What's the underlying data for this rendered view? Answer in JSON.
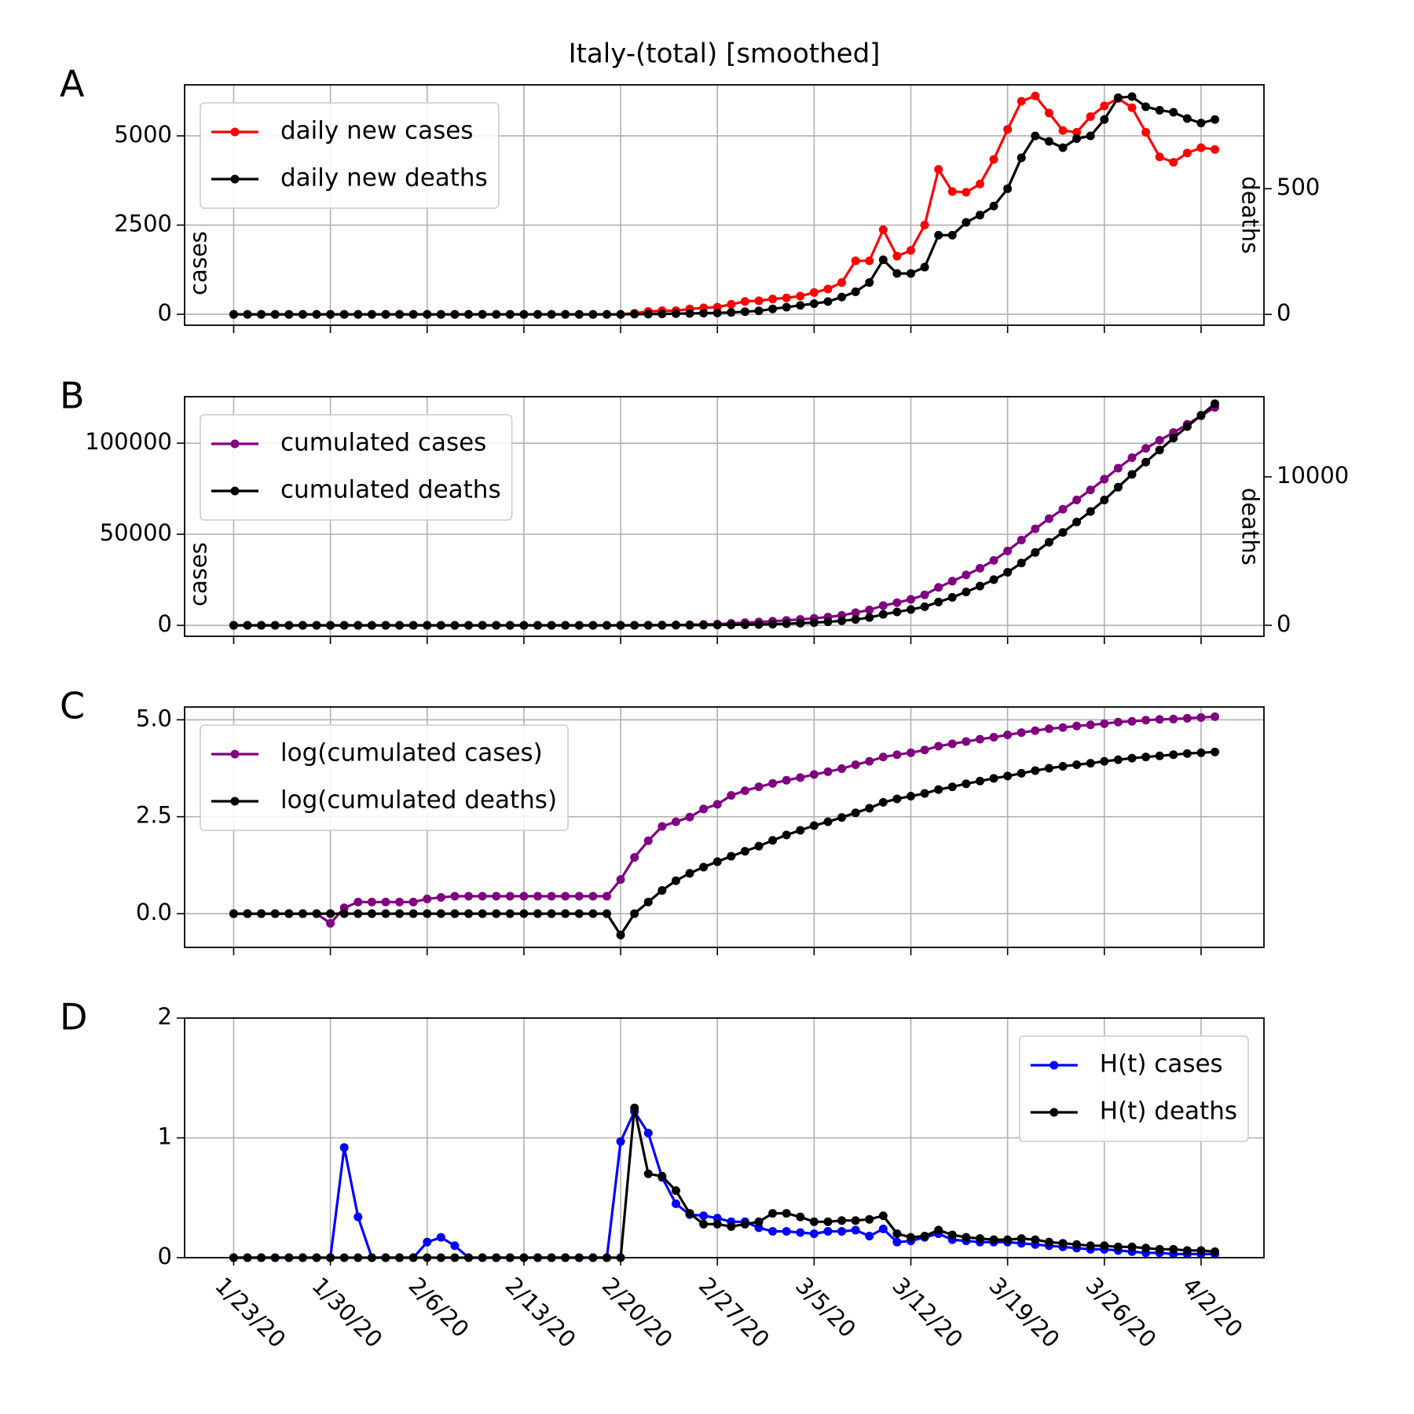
{
  "chart_data": [
    {
      "type": "line",
      "title": "Italy-(total) [smoothed]",
      "panel_label": "A",
      "ylabel": "cases",
      "y2label": "deaths",
      "legend": "upper left",
      "grid": true,
      "ylim": [
        -306,
        6430
      ],
      "yticks": [
        0,
        2500,
        5000
      ],
      "y2lim": [
        -43,
        913
      ],
      "y2ticks": [
        0,
        500
      ],
      "series": [
        {
          "name": "daily new cases",
          "color": "#ff0000",
          "values": [
            0,
            0,
            0,
            0,
            0,
            0,
            0,
            0,
            0,
            0,
            0,
            0,
            0,
            0,
            0,
            0,
            0,
            0,
            0,
            0,
            0,
            0,
            0,
            0,
            0,
            0,
            0,
            0,
            0,
            30,
            80,
            100,
            100,
            150,
            180,
            200,
            280,
            360,
            380,
            430,
            460,
            510,
            610,
            710,
            890,
            1500,
            1500,
            2370,
            1630,
            1790,
            2500,
            4060,
            3440,
            3420,
            3650,
            4340,
            5180,
            5970,
            6120,
            5640,
            5150,
            5100,
            5540,
            5840,
            6050,
            5790,
            5100,
            4410,
            4260,
            4520,
            4670,
            4620
          ]
        },
        {
          "name": "daily new deaths",
          "color": "#000000",
          "axis": "y2",
          "values": [
            0,
            0,
            0,
            0,
            0,
            0,
            0,
            0,
            0,
            0,
            0,
            0,
            0,
            0,
            0,
            0,
            0,
            0,
            0,
            0,
            0,
            0,
            0,
            0,
            0,
            0,
            0,
            0,
            0,
            1,
            1,
            2,
            3,
            4,
            5,
            6,
            8,
            11,
            14,
            22,
            29,
            36,
            43,
            51,
            69,
            90,
            127,
            217,
            163,
            163,
            188,
            315,
            315,
            366,
            395,
            431,
            500,
            623,
            710,
            688,
            663,
            699,
            710,
            775,
            862,
            866,
            826,
            812,
            804,
            779,
            761,
            775
          ]
        }
      ]
    },
    {
      "type": "line",
      "panel_label": "B",
      "ylabel": "cases",
      "y2label": "deaths",
      "legend": "upper left",
      "grid": true,
      "ylim": [
        -6000,
        125500
      ],
      "yticks": [
        0,
        50000,
        100000
      ],
      "y2lim": [
        -740,
        15400
      ],
      "y2ticks": [
        0,
        10000
      ],
      "series": [
        {
          "name": "cumulated cases",
          "color": "#800080",
          "values": [
            1,
            1,
            1,
            1,
            1,
            1,
            1,
            0.6,
            1.4,
            2,
            2,
            2,
            2,
            2,
            2.4,
            2.6,
            2.8,
            2.8,
            2.8,
            2.8,
            2.8,
            2.8,
            2.8,
            2.8,
            2.8,
            2.8,
            2.8,
            2.8,
            8,
            28,
            76,
            178,
            234,
            309,
            501,
            661,
            1123,
            1483,
            1863,
            2293,
            2753,
            3263,
            3873,
            4583,
            5473,
            6973,
            8473,
            10843,
            12473,
            14263,
            16763,
            20823,
            24263,
            27683,
            31333,
            35673,
            40853,
            46823,
            52943,
            58583,
            63733,
            68833,
            74373,
            80213,
            86263,
            92053,
            97153,
            101563,
            105823,
            110343,
            115013,
            119633
          ]
        },
        {
          "name": "cumulated deaths",
          "color": "#000000",
          "axis": "y2",
          "values": [
            1,
            1,
            1,
            1,
            1,
            1,
            1,
            1,
            1,
            1,
            1,
            1,
            1,
            1,
            1,
            1,
            1,
            1,
            1,
            1,
            1,
            1,
            1,
            1,
            1,
            1,
            1,
            1,
            0.28,
            1,
            2,
            4,
            7,
            11,
            16,
            22,
            30,
            41,
            55,
            77,
            106,
            142,
            185,
            236,
            305,
            395,
            522,
            739,
            902,
            1065,
            1253,
            1568,
            1883,
            2249,
            2644,
            3075,
            3575,
            4198,
            4908,
            5596,
            6259,
            6958,
            7668,
            8443,
            9305,
            10171,
            10997,
            11809,
            12613,
            13392,
            14153,
            14928
          ]
        }
      ]
    },
    {
      "type": "line",
      "panel_label": "C",
      "legend": "upper left",
      "grid": true,
      "ylim": [
        -0.87,
        5.33
      ],
      "yticks": [
        {
          "value": 0,
          "label": "0.0"
        },
        2.5,
        {
          "value": 5,
          "label": "5.0"
        }
      ],
      "series": [
        {
          "name": "log(cumulated cases)",
          "color": "#800080",
          "values": [
            0,
            0,
            0,
            0,
            0,
            0,
            0,
            -0.25,
            0.15,
            0.3,
            0.3,
            0.3,
            0.3,
            0.3,
            0.38,
            0.42,
            0.45,
            0.45,
            0.45,
            0.45,
            0.45,
            0.45,
            0.45,
            0.45,
            0.45,
            0.45,
            0.45,
            0.45,
            0.88,
            1.45,
            1.88,
            2.25,
            2.37,
            2.49,
            2.7,
            2.82,
            3.05,
            3.17,
            3.27,
            3.36,
            3.44,
            3.51,
            3.59,
            3.66,
            3.74,
            3.84,
            3.93,
            4.04,
            4.1,
            4.15,
            4.22,
            4.32,
            4.38,
            4.44,
            4.5,
            4.55,
            4.61,
            4.67,
            4.72,
            4.77,
            4.8,
            4.84,
            4.87,
            4.9,
            4.94,
            4.96,
            4.99,
            5.01,
            5.02,
            5.04,
            5.06,
            5.08
          ]
        },
        {
          "name": "log(cumulated deaths)",
          "color": "#000000",
          "values": [
            0,
            0,
            0,
            0,
            0,
            0,
            0,
            0,
            0,
            0,
            0,
            0,
            0,
            0,
            0,
            0,
            0,
            0,
            0,
            0,
            0,
            0,
            0,
            0,
            0,
            0,
            0,
            0,
            -0.55,
            0,
            0.3,
            0.6,
            0.85,
            1.04,
            1.2,
            1.34,
            1.48,
            1.61,
            1.74,
            1.89,
            2.03,
            2.15,
            2.27,
            2.37,
            2.48,
            2.6,
            2.72,
            2.87,
            2.96,
            3.03,
            3.1,
            3.2,
            3.27,
            3.35,
            3.42,
            3.49,
            3.55,
            3.62,
            3.69,
            3.75,
            3.8,
            3.84,
            3.88,
            3.93,
            3.97,
            4.01,
            4.04,
            4.07,
            4.1,
            4.13,
            4.15,
            4.17
          ]
        }
      ]
    },
    {
      "type": "line",
      "panel_label": "D",
      "legend": "upper right",
      "grid": true,
      "ylim": [
        0,
        2
      ],
      "yticks": [
        0,
        1,
        2
      ],
      "categories": [
        "1/23/20",
        null,
        null,
        null,
        null,
        null,
        null,
        "1/30/20",
        null,
        null,
        null,
        null,
        null,
        null,
        "2/6/20",
        null,
        null,
        null,
        null,
        null,
        null,
        "2/13/20",
        null,
        null,
        null,
        null,
        null,
        null,
        "2/20/20",
        null,
        null,
        null,
        null,
        null,
        null,
        "2/27/20",
        null,
        null,
        null,
        null,
        null,
        null,
        "3/5/20",
        null,
        null,
        null,
        null,
        null,
        null,
        "3/12/20",
        null,
        null,
        null,
        null,
        null,
        null,
        "3/19/20",
        null,
        null,
        null,
        null,
        null,
        null,
        "3/26/20",
        null,
        null,
        null,
        null,
        null,
        null,
        "4/2/20",
        null
      ],
      "series": [
        {
          "name": "H(t) cases",
          "color": "#0000ff",
          "values": [
            0,
            0,
            0,
            0,
            0,
            0,
            0,
            0,
            0.92,
            0.34,
            0,
            0,
            0,
            0,
            0.13,
            0.17,
            0.1,
            0,
            0,
            0,
            0,
            0,
            0,
            0,
            0,
            0,
            0,
            0,
            0.97,
            1.22,
            1.04,
            0.67,
            0.45,
            0.36,
            0.35,
            0.33,
            0.3,
            0.3,
            0.25,
            0.22,
            0.22,
            0.21,
            0.2,
            0.22,
            0.22,
            0.23,
            0.18,
            0.24,
            0.13,
            0.14,
            0.17,
            0.2,
            0.15,
            0.14,
            0.13,
            0.13,
            0.13,
            0.12,
            0.11,
            0.1,
            0.09,
            0.08,
            0.07,
            0.07,
            0.06,
            0.05,
            0.04,
            0.04,
            0.03,
            0.03,
            0.03,
            0.03
          ]
        },
        {
          "name": "H(t) deaths",
          "color": "#000000",
          "values": [
            0,
            0,
            0,
            0,
            0,
            0,
            0,
            0,
            0,
            0,
            0,
            0,
            0,
            0,
            0,
            0,
            0,
            0,
            0,
            0,
            0,
            0,
            0,
            0,
            0,
            0,
            0,
            0,
            0,
            1.25,
            0.7,
            0.68,
            0.56,
            0.37,
            0.28,
            0.28,
            0.26,
            0.28,
            0.3,
            0.37,
            0.37,
            0.34,
            0.3,
            0.3,
            0.31,
            0.31,
            0.32,
            0.35,
            0.2,
            0.17,
            0.18,
            0.23,
            0.19,
            0.17,
            0.16,
            0.15,
            0.15,
            0.16,
            0.15,
            0.13,
            0.12,
            0.11,
            0.1,
            0.1,
            0.09,
            0.09,
            0.08,
            0.07,
            0.07,
            0.06,
            0.06,
            0.05
          ]
        }
      ]
    }
  ]
}
